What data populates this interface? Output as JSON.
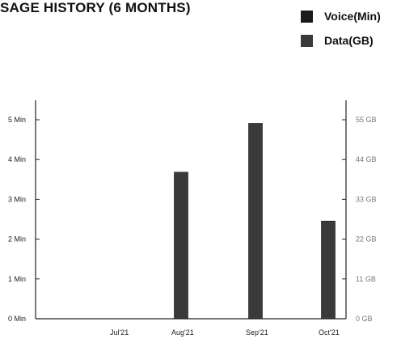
{
  "title": "SAGE HISTORY (6 MONTHS)",
  "colors": {
    "voice": "#1a1a1a",
    "data": "#3a3a3a",
    "axis": "#222222",
    "right_ticks": "#777777"
  },
  "chart_data": {
    "type": "bar",
    "categories": [
      "Jul'21",
      "Aug'21",
      "Sep'21",
      "Oct'21"
    ],
    "series": [
      {
        "name": "Voice(Min)",
        "values": [
          0,
          0,
          0,
          0
        ]
      },
      {
        "name": "Data(GB)",
        "values": [
          0,
          40.5,
          54,
          27
        ]
      }
    ],
    "y_left": {
      "ticks": [
        "0 Min",
        "1 Min",
        "2 Min",
        "3 Min",
        "4 Min",
        "5 Min"
      ],
      "range": [
        0,
        5
      ]
    },
    "y_right": {
      "ticks": [
        "0 GB",
        "11 GB",
        "22 GB",
        "33 GB",
        "44 GB",
        "55 GB"
      ],
      "range": [
        0,
        55
      ]
    },
    "legend_position": "top-right",
    "grid": false
  }
}
